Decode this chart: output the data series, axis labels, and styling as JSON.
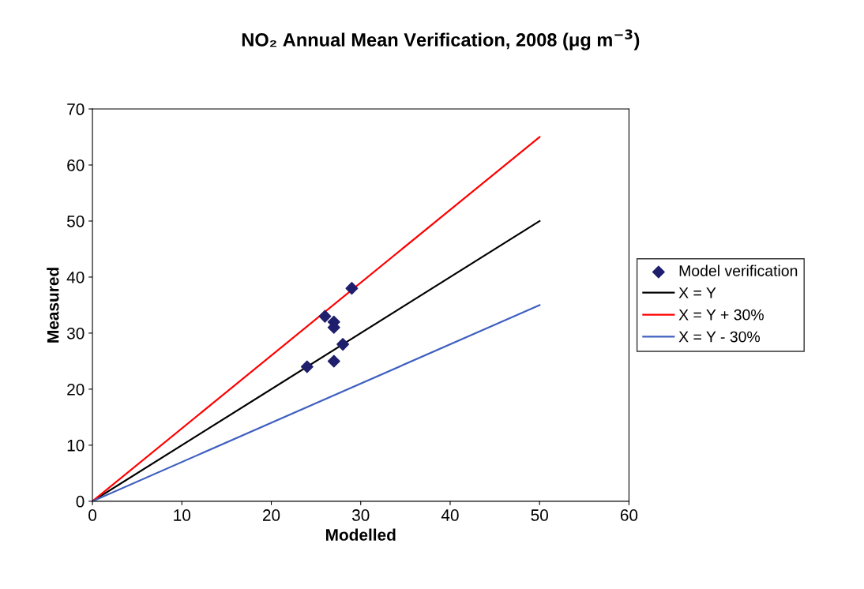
{
  "chart_data": {
    "type": "scatter",
    "title": "NO₂ Annual Mean Verification, 2008 (μg m$^{−3}$)",
    "xlabel": "Modelled",
    "ylabel": "Measured",
    "xlim": [
      0,
      60
    ],
    "xticks": [
      0,
      10,
      20,
      30,
      40,
      50,
      60
    ],
    "ylim": [
      0,
      70
    ],
    "yticks": [
      0,
      10,
      20,
      30,
      40,
      50,
      60,
      70
    ],
    "grid": false,
    "legend": "right",
    "series": [
      {
        "name": "Model verification",
        "marker": "diamond",
        "color": "#1f1f6e",
        "x": [
          24,
          26,
          27,
          27,
          27,
          28,
          29
        ],
        "values": [
          24,
          33,
          32,
          31,
          25,
          28,
          38
        ]
      },
      {
        "name": "X = Y",
        "type": "line",
        "marker": "none",
        "color": "#000000",
        "x": [
          0,
          50
        ],
        "values": [
          0,
          50
        ]
      },
      {
        "name": "X = Y + 30%",
        "type": "line",
        "marker": "none",
        "color": "#ff0000",
        "x": [
          0,
          50
        ],
        "values": [
          0,
          65
        ]
      },
      {
        "name": "X = Y - 30%",
        "type": "line",
        "marker": "none",
        "color": "#4060c0",
        "x": [
          0,
          50
        ],
        "values": [
          0,
          35
        ]
      }
    ]
  }
}
